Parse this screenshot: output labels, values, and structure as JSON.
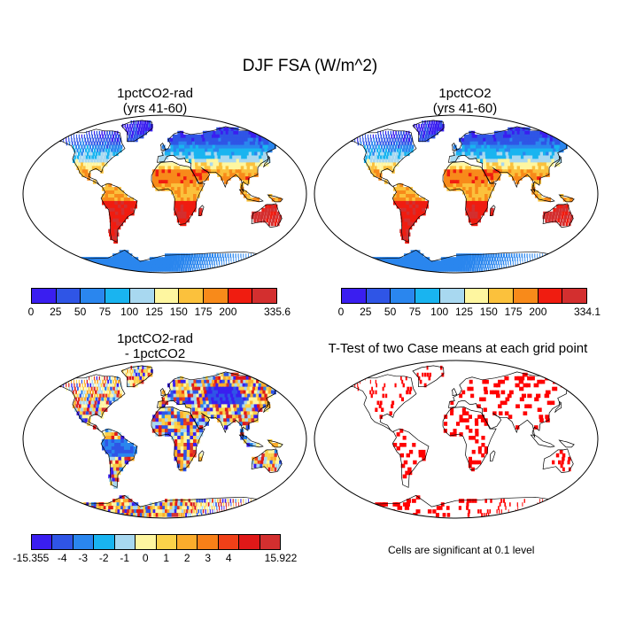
{
  "title": "DJF FSA (W/m^2)",
  "panels": {
    "p1": {
      "title1": "1pctCO2-rad",
      "title2": "(yrs 41-60)"
    },
    "p2": {
      "title1": "1pctCO2",
      "title2": "(yrs 41-60)"
    },
    "p3": {
      "title1": "1pctCO2-rad",
      "title2": "- 1pctCO2"
    },
    "p4": {
      "title1": "T-Test of two Case means at each grid point"
    }
  },
  "colorbars": {
    "abs": {
      "colors": [
        "#3a1ef0",
        "#2f55e6",
        "#2a86ee",
        "#19b4f0",
        "#a8d8f0",
        "#fef6a0",
        "#fbc13c",
        "#f88a1a",
        "#f01c10",
        "#d32f2f"
      ],
      "ticks1": [
        "0",
        "25",
        "50",
        "75",
        "100",
        "125",
        "150",
        "175",
        "200",
        "335.6"
      ],
      "ticks2": [
        "0",
        "25",
        "50",
        "75",
        "100",
        "125",
        "150",
        "175",
        "200",
        "334.1"
      ]
    },
    "diff": {
      "colors": [
        "#3a1ef0",
        "#2f55e6",
        "#2a86ee",
        "#19b4f0",
        "#a8d8f0",
        "#fef6a0",
        "#fbd24a",
        "#fbac2c",
        "#f88018",
        "#f04018",
        "#e01818",
        "#d32f2f"
      ],
      "ticks": [
        "-15.355",
        "-4",
        "-3",
        "-2",
        "-1",
        "0",
        "1",
        "2",
        "3",
        "4",
        "15.922"
      ]
    }
  },
  "note": "Cells are significant at 0.1 level",
  "colors": {
    "significant": "#ff0000",
    "ocean": "#ffffff",
    "coast": "#000000"
  }
}
